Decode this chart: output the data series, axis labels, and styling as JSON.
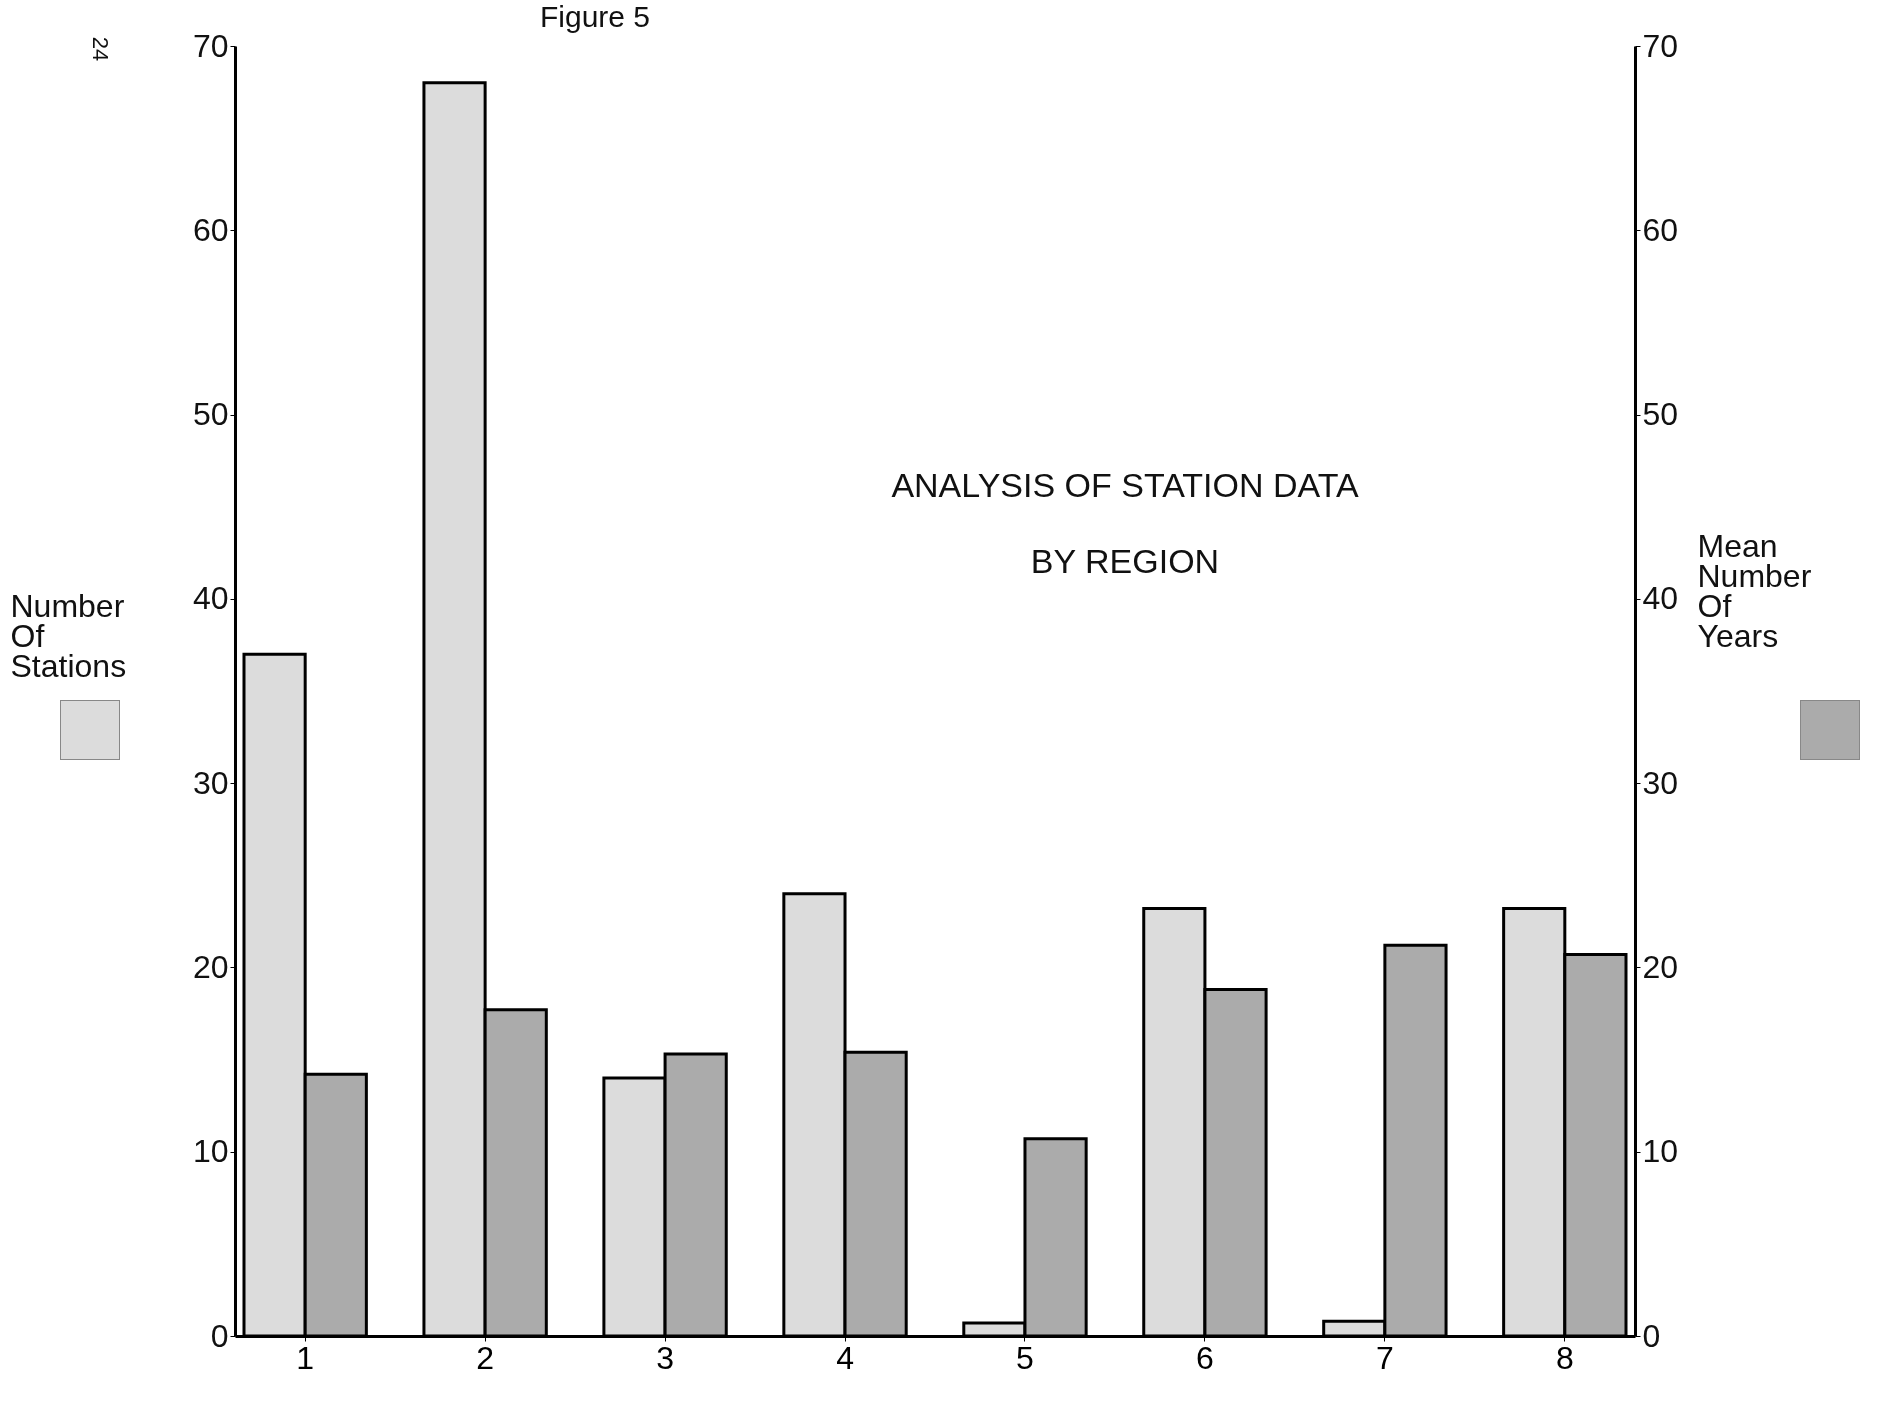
{
  "chart_data": {
    "type": "bar",
    "title": [
      "ANALYSIS OF STATION DATA",
      "BY REGION"
    ],
    "ylabel": "Number Of Stations",
    "y2label": "Mean Number Of Years",
    "annotations": [
      "Figure 5",
      "24"
    ],
    "categories": [
      "1",
      "2",
      "3",
      "4",
      "5",
      "6",
      "7",
      "8"
    ],
    "series": [
      {
        "color": "#dcdcdc",
        "values": [
          37,
          68,
          14,
          24,
          0.7,
          23.2,
          0.8,
          23.2
        ]
      },
      {
        "color": "#ababab",
        "axis": "y2",
        "values": [
          14.2,
          17.7,
          15.3,
          15.4,
          10.7,
          18.8,
          21.2,
          20.7
        ]
      }
    ],
    "ylim": [
      0,
      70
    ],
    "yticks": [
      0,
      10,
      20,
      30,
      40,
      50,
      60,
      70
    ],
    "y2lim": [
      0,
      70
    ],
    "y2ticks": [
      0,
      10,
      20,
      30,
      40,
      50,
      60,
      70
    ],
    "grid": false
  }
}
